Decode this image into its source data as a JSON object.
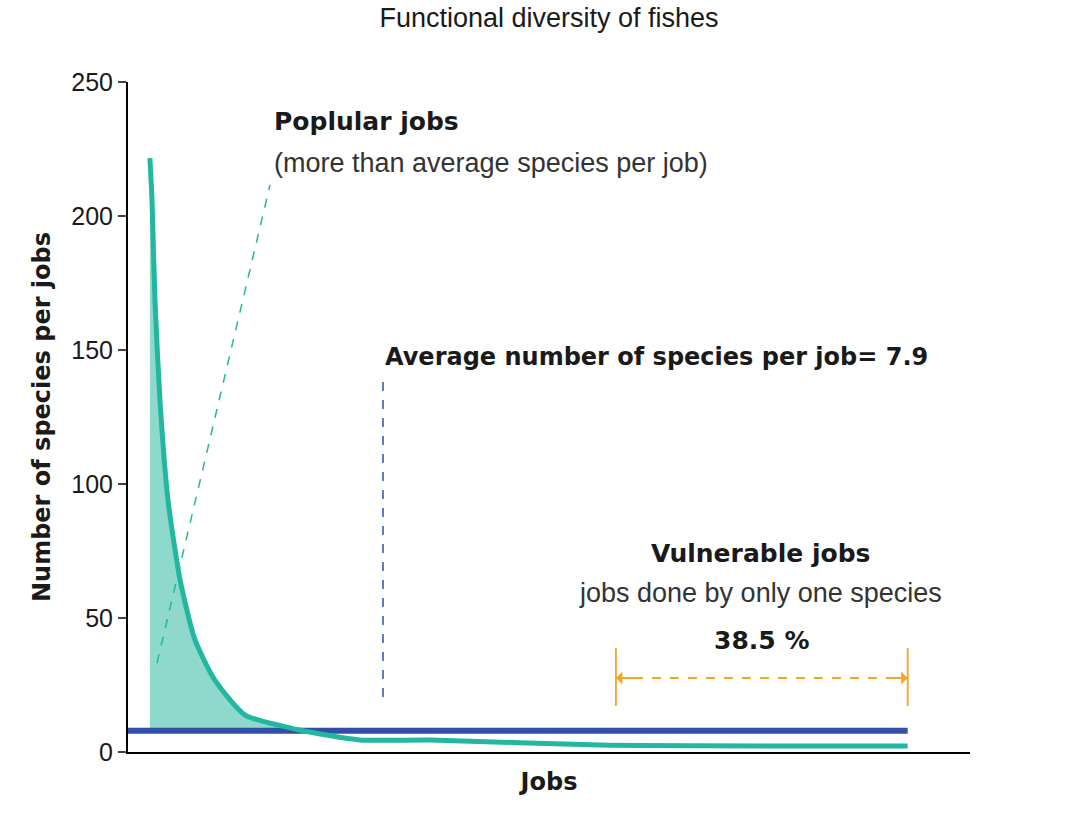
{
  "chart_data": {
    "type": "line",
    "title": "Functional diversity of fishes",
    "x_label": "Jobs",
    "y_label": "Number of species per jobs",
    "x": [
      2.6,
      2.85,
      3.2,
      3.8,
      4.75,
      6.2,
      7.96,
      10.3,
      13.9,
      20.4,
      27.5,
      35.9,
      56,
      92.6
    ],
    "values": [
      221.6,
      206,
      168.7,
      131,
      94,
      64,
      41.8,
      26.9,
      13.8,
      8.2,
      4.5,
      4.5,
      2.6,
      2.2
    ],
    "color": "#23b7a0",
    "xlim": [
      0,
      100
    ],
    "ylim": [
      0,
      250
    ],
    "yticks": [
      0,
      50,
      100,
      150,
      200,
      250
    ],
    "tick_labels": "y",
    "grid": false,
    "average": {
      "value": 7.9,
      "label": "Average number of species per job= 7.9",
      "color": "#2f50a5"
    },
    "popular": {
      "title": "Poplular jobs",
      "subtitle": "(more than average species per job)",
      "color": "#8ed9cb"
    },
    "vulnerable": {
      "title": "Vulnerable jobs",
      "subtitle": "jobs done by only one species",
      "share": 38.5,
      "share_label": "38.5 %",
      "color": "#f5a623"
    }
  }
}
